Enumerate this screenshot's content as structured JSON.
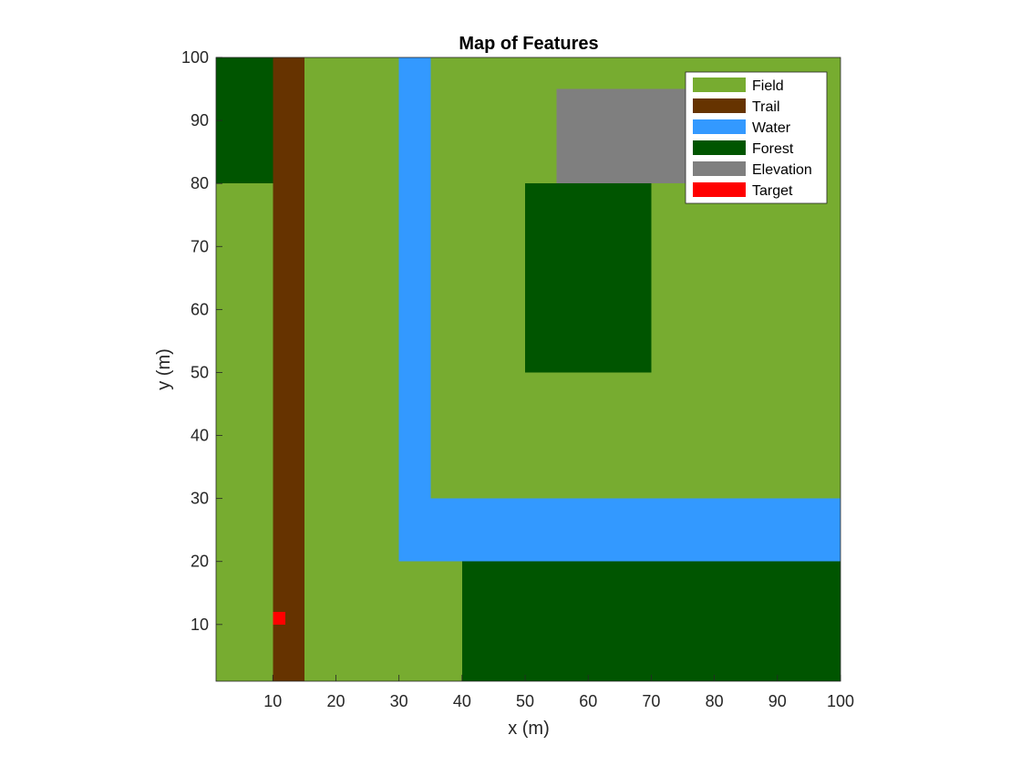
{
  "chart_data": {
    "type": "heatmap",
    "title": "Map of Features",
    "xlabel": "x (m)",
    "ylabel": "y (m)",
    "xlim": [
      1,
      100
    ],
    "ylim": [
      1,
      100
    ],
    "xticks": [
      10,
      20,
      30,
      40,
      50,
      60,
      70,
      80,
      90,
      100
    ],
    "yticks": [
      10,
      20,
      30,
      40,
      50,
      60,
      70,
      80,
      90,
      100
    ],
    "grid": false,
    "legend_position": "top-right",
    "categories": [
      {
        "name": "Field",
        "color": "#77AC30"
      },
      {
        "name": "Trail",
        "color": "#663300"
      },
      {
        "name": "Water",
        "color": "#3399FF"
      },
      {
        "name": "Forest",
        "color": "#005500"
      },
      {
        "name": "Elevation",
        "color": "#7F7F7F"
      },
      {
        "name": "Target",
        "color": "#FF0000"
      }
    ],
    "background_category": "Field",
    "regions": [
      {
        "category": "Forest",
        "x": [
          1,
          10
        ],
        "y": [
          80,
          100
        ]
      },
      {
        "category": "Trail",
        "x": [
          10,
          15
        ],
        "y": [
          1,
          100
        ]
      },
      {
        "category": "Water",
        "x": [
          30,
          35
        ],
        "y": [
          20,
          100
        ]
      },
      {
        "category": "Water",
        "x": [
          30,
          100
        ],
        "y": [
          20,
          30
        ]
      },
      {
        "category": "Elevation",
        "x": [
          55,
          80
        ],
        "y": [
          80,
          95
        ]
      },
      {
        "category": "Forest",
        "x": [
          50,
          70
        ],
        "y": [
          50,
          80
        ]
      },
      {
        "category": "Forest",
        "x": [
          40,
          100
        ],
        "y": [
          1,
          20
        ]
      },
      {
        "category": "Target",
        "x": [
          10,
          12
        ],
        "y": [
          10,
          12
        ]
      }
    ]
  }
}
